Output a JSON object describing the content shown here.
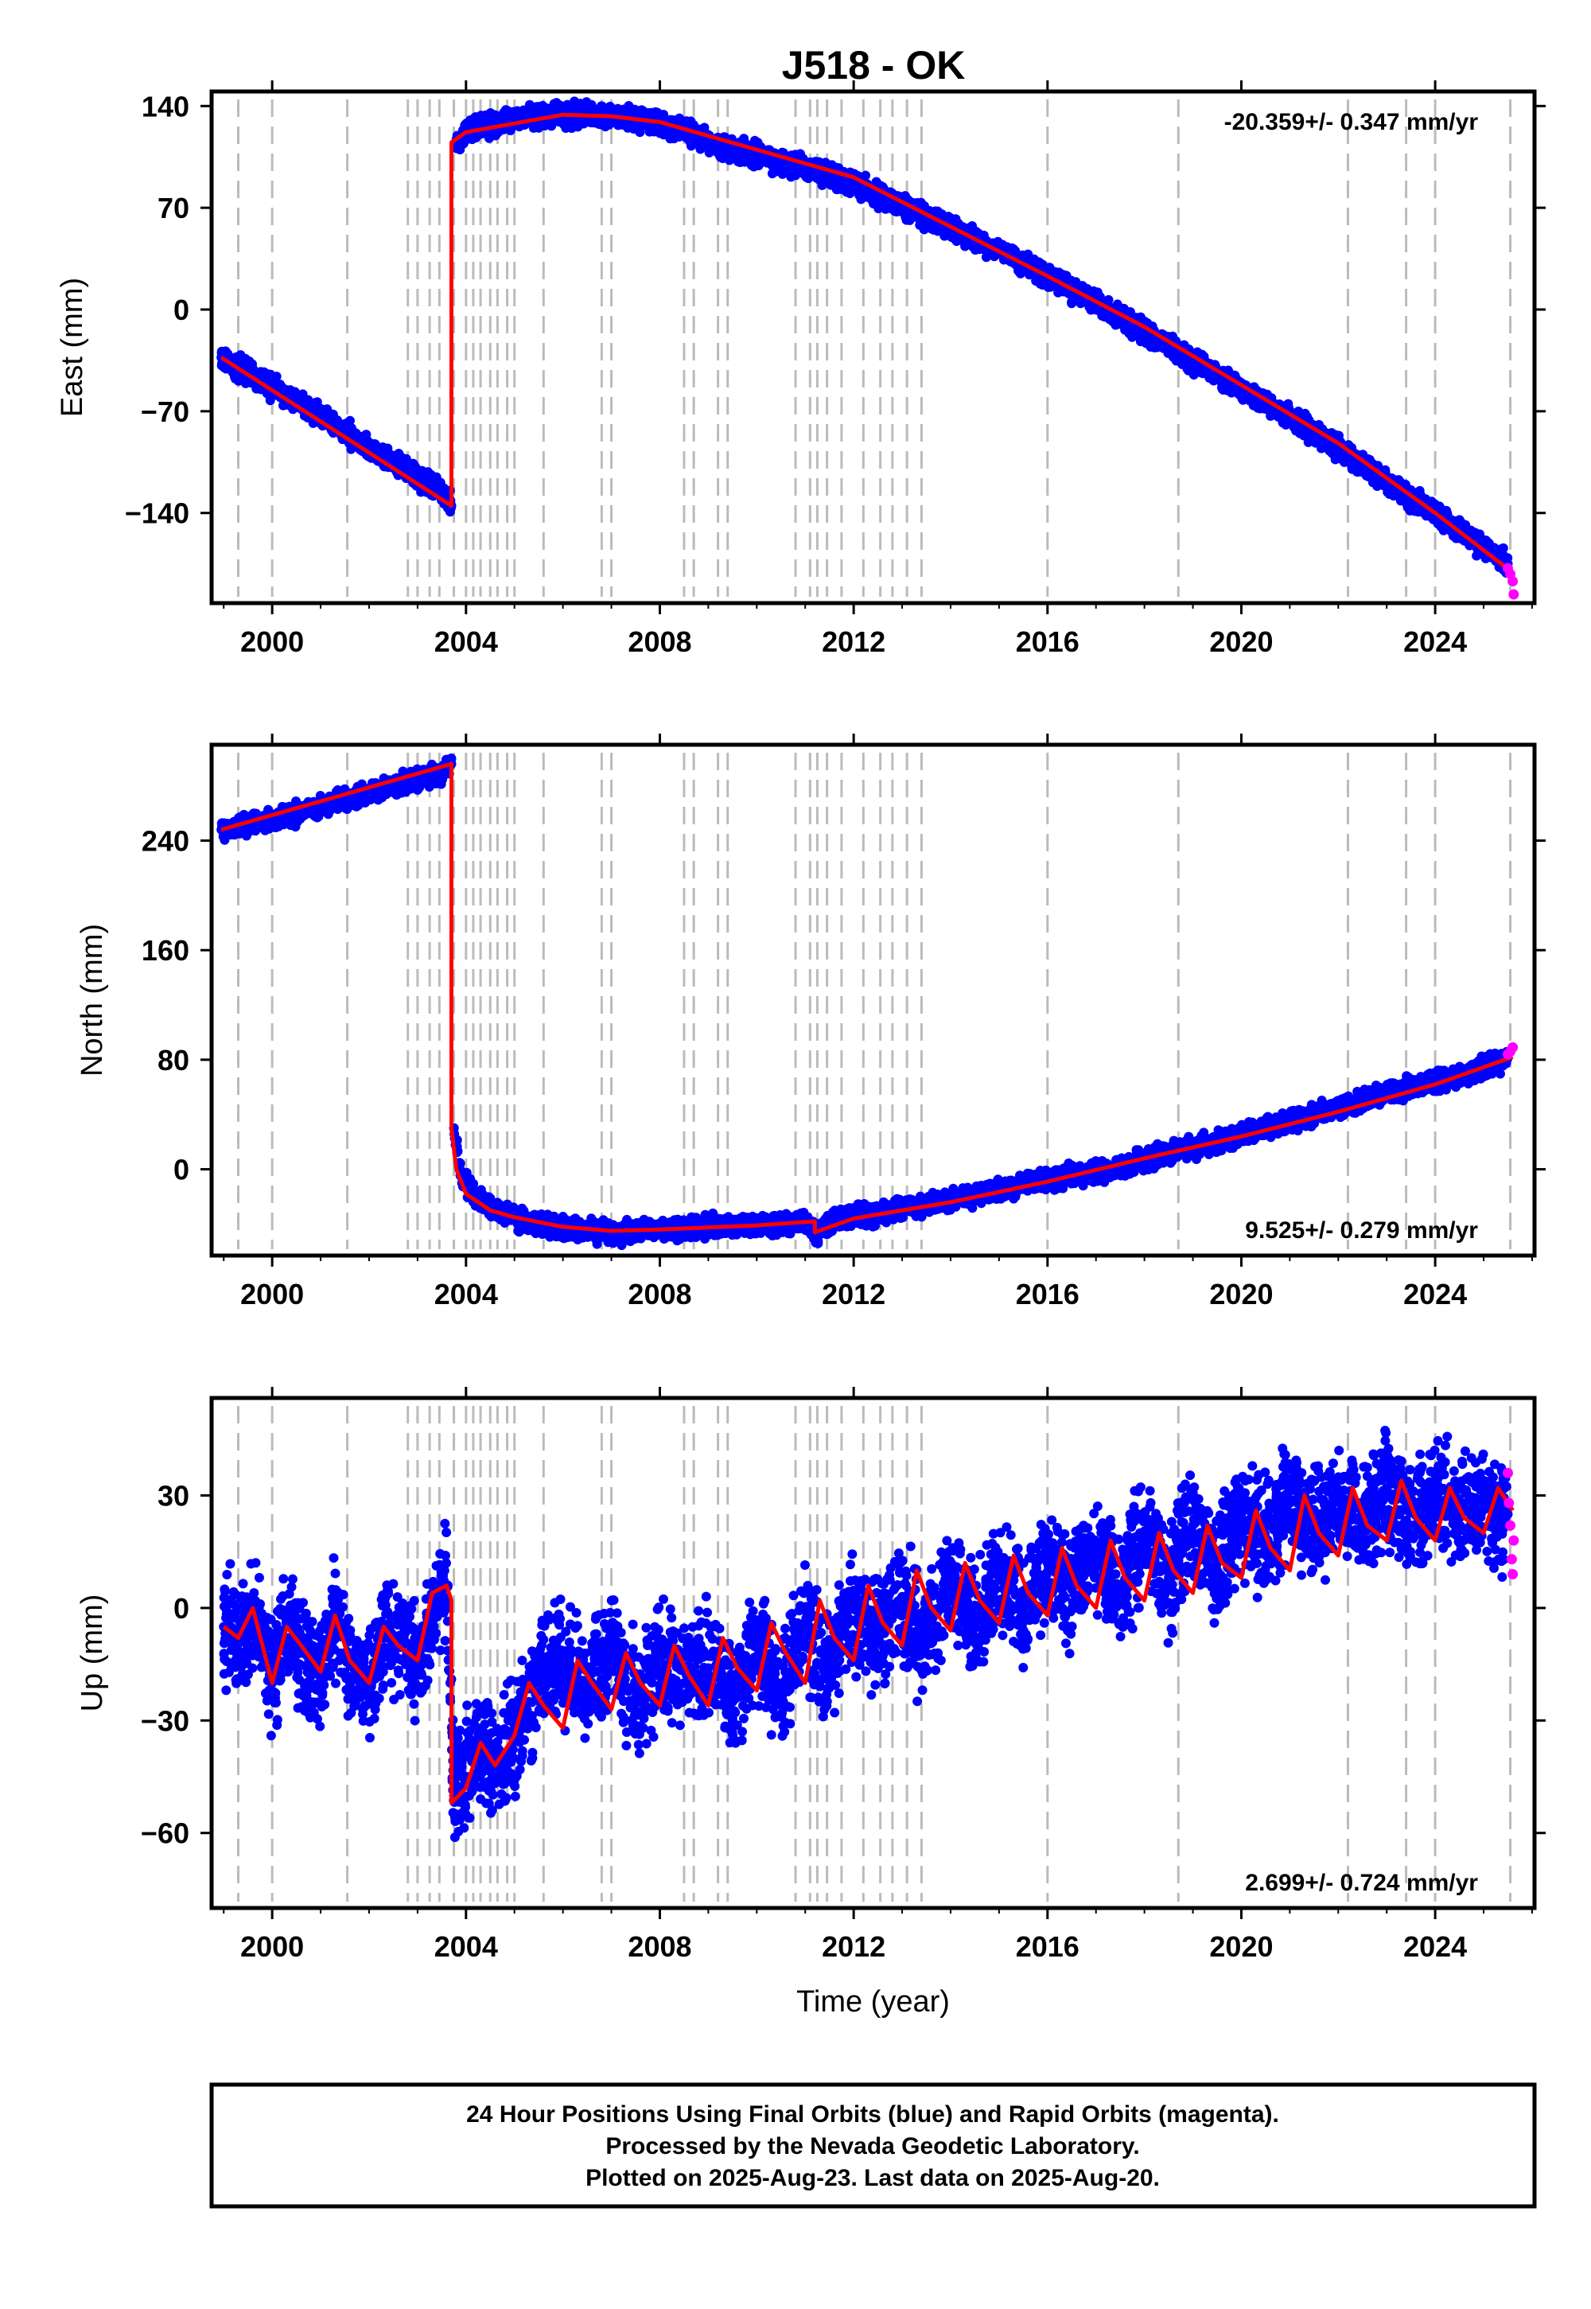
{
  "title": "J518 - OK",
  "colors": {
    "final_orbits": "#0000ff",
    "rapid_orbits": "#ff00ff",
    "model": "#ff0000",
    "event_lines": "#bbbbbb"
  },
  "chart_data": [
    {
      "type": "scatter",
      "panel": "east",
      "ylabel": "East (mm)",
      "xlabel": "",
      "xlim": [
        1998.75,
        2026.05
      ],
      "ylim": [
        -202,
        150
      ],
      "yticks": [
        "140",
        "70",
        "0",
        "−70",
        "−140"
      ],
      "ytick_values": [
        140,
        70,
        0,
        -70,
        -140
      ],
      "xticks": [
        "2000",
        "2004",
        "2008",
        "2012",
        "2016",
        "2020",
        "2024"
      ],
      "xtick_values": [
        2000,
        2004,
        2008,
        2012,
        2016,
        2020,
        2024
      ],
      "rate": "-20.359+/- 0.347 mm/yr",
      "rate_position": "top-right",
      "grid": false,
      "series": [
        {
          "name": "Final Orbits",
          "color": "#0000ff",
          "x": [
            1998.95,
            1999.5,
            2000.0,
            2000.5,
            2001.0,
            2001.5,
            2002.0,
            2002.5,
            2003.0,
            2003.5,
            2003.7,
            2003.8,
            2004.0,
            2004.5,
            2005.0,
            2005.5,
            2006.0,
            2006.5,
            2007.0,
            2007.5,
            2008.0,
            2008.5,
            2009.0,
            2009.5,
            2010.0,
            2010.5,
            2011.0,
            2011.5,
            2012.0,
            2012.5,
            2013.0,
            2013.5,
            2014.0,
            2014.5,
            2015.0,
            2015.5,
            2016.0,
            2016.5,
            2017.0,
            2017.5,
            2018.0,
            2018.5,
            2019.0,
            2019.5,
            2020.0,
            2020.5,
            2021.0,
            2021.5,
            2022.0,
            2022.5,
            2023.0,
            2023.5,
            2024.0,
            2024.5,
            2025.0,
            2025.5
          ],
          "y": [
            -33,
            -44,
            -54,
            -63,
            -74,
            -84,
            -95,
            -105,
            -115,
            -125,
            -135,
            115,
            122,
            127,
            131,
            133,
            134,
            134,
            133,
            131,
            128,
            122,
            116,
            110,
            106,
            101,
            98,
            92,
            86,
            79,
            72,
            64,
            56,
            48,
            41,
            32,
            23,
            14,
            5,
            -6,
            -15,
            -25,
            -35,
            -45,
            -55,
            -65,
            -75,
            -85,
            -95,
            -107,
            -118,
            -130,
            -140,
            -152,
            -163,
            -175
          ]
        },
        {
          "name": "Rapid Orbits",
          "color": "#ff00ff",
          "x": [
            2025.5,
            2025.55,
            2025.6,
            2025.62
          ],
          "y": [
            -178,
            -182,
            -187,
            -196
          ]
        },
        {
          "name": "Model",
          "color": "#ff0000",
          "x": [
            1998.95,
            2003.7,
            2003.7,
            2004.0,
            2006.0,
            2007.0,
            2008.0,
            2010.0,
            2012.0,
            2014.0,
            2016.0,
            2018.0,
            2020.0,
            2022.0,
            2024.0,
            2025.6
          ],
          "y": [
            -33,
            -135,
            115,
            122,
            134,
            133,
            129,
            110,
            91,
            57,
            23,
            -12,
            -52,
            -92,
            -140,
            -181
          ]
        }
      ],
      "event_lines_x": [
        1999.3,
        2000.0,
        2001.55,
        2002.8,
        2003.0,
        2003.25,
        2003.45,
        2003.75,
        2004.0,
        2004.15,
        2004.3,
        2004.5,
        2004.65,
        2004.85,
        2005.0,
        2005.6,
        2006.8,
        2007.0,
        2008.5,
        2008.7,
        2009.2,
        2009.4,
        2010.8,
        2011.1,
        2011.25,
        2011.45,
        2011.75,
        2012.2,
        2012.55,
        2012.8,
        2013.1,
        2013.4,
        2016.0,
        2018.7,
        2022.2,
        2023.4,
        2024.0,
        2025.55
      ]
    },
    {
      "type": "scatter",
      "panel": "north",
      "ylabel": "North (mm)",
      "xlabel": "",
      "xlim": [
        1998.75,
        2026.05
      ],
      "ylim": [
        -63,
        310
      ],
      "yticks": [
        "240",
        "160",
        "80",
        "0"
      ],
      "ytick_values": [
        240,
        160,
        80,
        0
      ],
      "xticks": [
        "2000",
        "2004",
        "2008",
        "2012",
        "2016",
        "2020",
        "2024"
      ],
      "xtick_values": [
        2000,
        2004,
        2008,
        2012,
        2016,
        2020,
        2024
      ],
      "rate": "9.525+/- 0.279 mm/yr",
      "rate_position": "bottom-right",
      "grid": false,
      "series": [
        {
          "name": "Final Orbits",
          "color": "#0000ff",
          "x": [
            1998.95,
            1999.5,
            2000.0,
            2000.5,
            2001.0,
            2001.5,
            2002.0,
            2002.5,
            2003.0,
            2003.5,
            2003.7,
            2003.75,
            2003.9,
            2004.2,
            2004.6,
            2005.0,
            2005.5,
            2006.0,
            2006.5,
            2007.0,
            2007.5,
            2008.0,
            2008.5,
            2009.0,
            2009.5,
            2010.0,
            2010.5,
            2011.0,
            2011.2,
            2011.5,
            2012.0,
            2012.5,
            2013.0,
            2013.5,
            2014.0,
            2014.5,
            2015.0,
            2015.5,
            2016.0,
            2016.5,
            2017.0,
            2017.5,
            2018.0,
            2018.5,
            2019.0,
            2019.5,
            2020.0,
            2020.5,
            2021.0,
            2021.5,
            2022.0,
            2022.5,
            2023.0,
            2023.5,
            2024.0,
            2024.5,
            2025.0,
            2025.5
          ],
          "y": [
            248,
            252,
            256,
            260,
            265,
            270,
            275,
            280,
            285,
            290,
            296,
            30,
            -5,
            -20,
            -30,
            -35,
            -40,
            -43,
            -45,
            -46,
            -45,
            -44,
            -44,
            -42,
            -42,
            -41,
            -40,
            -38,
            -48,
            -38,
            -35,
            -32,
            -28,
            -26,
            -23,
            -19,
            -15,
            -12,
            -8,
            -5,
            -2,
            2,
            7,
            12,
            16,
            20,
            25,
            30,
            35,
            40,
            45,
            50,
            56,
            60,
            64,
            68,
            74,
            82
          ]
        },
        {
          "name": "Rapid Orbits",
          "color": "#ff00ff",
          "x": [
            2025.5,
            2025.55,
            2025.6
          ],
          "y": [
            84,
            86,
            89
          ]
        },
        {
          "name": "Model",
          "color": "#ff0000",
          "x": [
            1998.95,
            2003.7,
            2003.7,
            2003.8,
            2004.0,
            2004.5,
            2005.0,
            2006.0,
            2007.0,
            2008.0,
            2010.0,
            2011.2,
            2011.2,
            2012.0,
            2014.0,
            2016.0,
            2018.0,
            2020.0,
            2022.0,
            2024.0,
            2025.6
          ],
          "y": [
            248,
            296,
            30,
            0,
            -18,
            -30,
            -35,
            -42,
            -45,
            -44,
            -41,
            -38,
            -46,
            -36,
            -24,
            -9,
            8,
            24,
            42,
            62,
            82
          ]
        }
      ],
      "event_lines_x": [
        1999.3,
        2000.0,
        2001.55,
        2002.8,
        2003.0,
        2003.25,
        2003.45,
        2003.75,
        2004.0,
        2004.15,
        2004.3,
        2004.5,
        2004.65,
        2004.85,
        2005.0,
        2005.6,
        2006.8,
        2007.0,
        2008.5,
        2008.7,
        2009.2,
        2009.4,
        2010.8,
        2011.1,
        2011.25,
        2011.45,
        2011.75,
        2012.2,
        2012.55,
        2012.8,
        2013.1,
        2013.4,
        2016.0,
        2018.7,
        2022.2,
        2023.4,
        2024.0,
        2025.55
      ]
    },
    {
      "type": "scatter",
      "panel": "up",
      "ylabel": "Up (mm)",
      "xlabel": "Time (year)",
      "xlim": [
        1998.75,
        2026.05
      ],
      "ylim": [
        -80,
        56
      ],
      "yticks": [
        "30",
        "0",
        "−30",
        "−60"
      ],
      "ytick_values": [
        30,
        0,
        -30,
        -60
      ],
      "xticks": [
        "2000",
        "2004",
        "2008",
        "2012",
        "2016",
        "2020",
        "2024"
      ],
      "xtick_values": [
        2000,
        2004,
        2008,
        2012,
        2016,
        2020,
        2024
      ],
      "rate": "2.699+/- 0.724 mm/yr",
      "rate_position": "bottom-right",
      "grid": false,
      "series": [
        {
          "name": "Final Orbits",
          "color": "#0000ff",
          "x": [
            1999.0,
            1999.3,
            1999.6,
            2000.0,
            2000.3,
            2000.6,
            2001.0,
            2001.3,
            2001.6,
            2002.0,
            2002.3,
            2002.6,
            2003.0,
            2003.3,
            2003.6,
            2003.75,
            2004.0,
            2004.3,
            2004.6,
            2005.0,
            2005.3,
            2005.6,
            2006.0,
            2006.5,
            2007.0,
            2007.5,
            2008.0,
            2008.5,
            2009.0,
            2009.5,
            2010.0,
            2010.5,
            2011.0,
            2011.5,
            2012.0,
            2012.5,
            2013.0,
            2013.5,
            2014.0,
            2014.5,
            2015.0,
            2015.5,
            2016.0,
            2016.5,
            2017.0,
            2017.5,
            2018.0,
            2018.5,
            2019.0,
            2019.5,
            2020.0,
            2020.5,
            2021.0,
            2021.5,
            2022.0,
            2022.5,
            2023.0,
            2023.5,
            2024.0,
            2024.5,
            2025.0,
            2025.5
          ],
          "y": [
            -5,
            -8,
            0,
            -20,
            -5,
            -12,
            -18,
            -2,
            -15,
            -20,
            -8,
            -10,
            -15,
            0,
            6,
            -50,
            -45,
            -38,
            -42,
            -35,
            -25,
            -18,
            -15,
            -22,
            -10,
            -25,
            -14,
            -20,
            -16,
            -25,
            -10,
            -22,
            -5,
            -15,
            0,
            -8,
            3,
            -10,
            8,
            -5,
            10,
            -2,
            12,
            5,
            15,
            5,
            18,
            8,
            22,
            10,
            25,
            18,
            28,
            20,
            30,
            22,
            32,
            22,
            30,
            24,
            28,
            25
          ]
        },
        {
          "name": "Rapid Orbits",
          "color": "#ff00ff",
          "x": [
            2025.5,
            2025.52,
            2025.55,
            2025.58,
            2025.6,
            2025.62
          ],
          "y": [
            36,
            28,
            22,
            13,
            9,
            18
          ]
        },
        {
          "name": "Model",
          "color": "#ff0000",
          "x": [
            1999.0,
            1999.3,
            1999.6,
            2000.0,
            2000.3,
            2000.6,
            2001.0,
            2001.3,
            2001.6,
            2002.0,
            2002.3,
            2002.6,
            2003.0,
            2003.3,
            2003.6,
            2003.7,
            2003.7,
            2004.0,
            2004.3,
            2004.6,
            2005.0,
            2005.3,
            2005.6,
            2006.0,
            2006.3,
            2006.6,
            2007.0,
            2007.3,
            2007.6,
            2008.0,
            2008.3,
            2008.6,
            2009.0,
            2009.3,
            2009.6,
            2010.0,
            2010.3,
            2010.6,
            2011.0,
            2011.3,
            2011.6,
            2012.0,
            2012.3,
            2012.6,
            2013.0,
            2013.3,
            2013.6,
            2014.0,
            2014.3,
            2014.6,
            2015.0,
            2015.3,
            2015.6,
            2016.0,
            2016.3,
            2016.6,
            2017.0,
            2017.3,
            2017.6,
            2018.0,
            2018.3,
            2018.6,
            2019.0,
            2019.3,
            2019.6,
            2020.0,
            2020.3,
            2020.6,
            2021.0,
            2021.3,
            2021.6,
            2022.0,
            2022.3,
            2022.6,
            2023.0,
            2023.3,
            2023.6,
            2024.0,
            2024.3,
            2024.6,
            2025.0,
            2025.3,
            2025.6
          ],
          "y": [
            -5,
            -8,
            0,
            -20,
            -5,
            -10,
            -17,
            -2,
            -14,
            -20,
            -5,
            -10,
            -14,
            4,
            6,
            2,
            -52,
            -48,
            -36,
            -42,
            -34,
            -20,
            -26,
            -32,
            -14,
            -20,
            -27,
            -12,
            -20,
            -26,
            -10,
            -18,
            -26,
            -8,
            -16,
            -22,
            -4,
            -12,
            -20,
            2,
            -8,
            -14,
            6,
            -4,
            -10,
            10,
            0,
            -6,
            12,
            2,
            -4,
            14,
            4,
            -2,
            16,
            6,
            0,
            18,
            8,
            2,
            20,
            10,
            4,
            22,
            12,
            8,
            26,
            16,
            10,
            30,
            20,
            14,
            32,
            22,
            18,
            34,
            24,
            18,
            32,
            24,
            20,
            32,
            26
          ]
        }
      ],
      "event_lines_x": [
        1999.3,
        2000.0,
        2001.55,
        2002.8,
        2003.0,
        2003.25,
        2003.45,
        2003.75,
        2004.0,
        2004.15,
        2004.3,
        2004.5,
        2004.65,
        2004.85,
        2005.0,
        2005.6,
        2006.8,
        2007.0,
        2008.5,
        2008.7,
        2009.2,
        2009.4,
        2010.8,
        2011.1,
        2011.25,
        2011.45,
        2011.75,
        2012.2,
        2012.55,
        2012.8,
        2013.1,
        2013.4,
        2016.0,
        2018.7,
        2022.2,
        2023.4,
        2024.0,
        2025.55
      ]
    }
  ],
  "caption": {
    "line1": "24 Hour Positions Using Final Orbits (blue) and Rapid Orbits (magenta).",
    "line2": "Processed by the Nevada Geodetic Laboratory.",
    "line3": "Plotted on 2025-Aug-23. Last data on 2025-Aug-20."
  }
}
